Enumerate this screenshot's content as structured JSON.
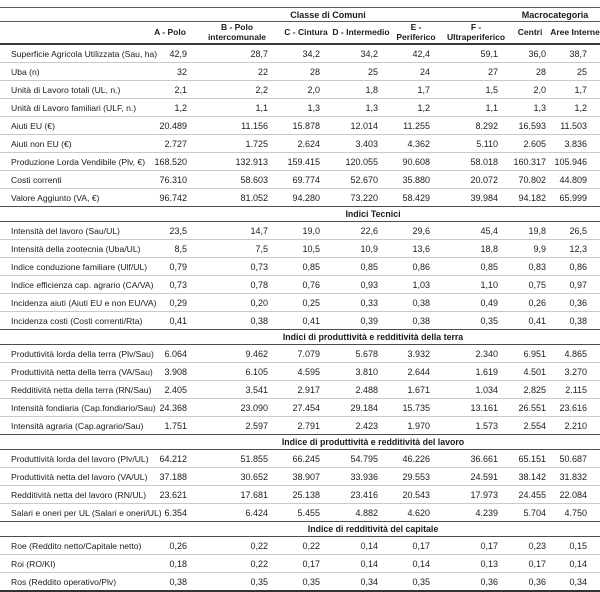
{
  "table": {
    "col_groups": [
      {
        "label": "Classe di Comuni",
        "span": 6
      },
      {
        "label": "Macrocategoria",
        "span": 2
      }
    ],
    "columns": [
      "A - Polo",
      "B - Polo intercomunale",
      "C - Cintura",
      "D - Intermedio",
      "E - Periferico",
      "F - Ultraperiferico",
      "Centri",
      "Aree Interne"
    ],
    "sections": [
      {
        "title": "",
        "rows": [
          {
            "label": "Superficie Agricola Utilizzata (Sau, ha)",
            "values": [
              "42,9",
              "28,7",
              "34,2",
              "34,2",
              "42,4",
              "59,1",
              "36,0",
              "38,7"
            ]
          },
          {
            "label": "Uba (n)",
            "values": [
              "32",
              "22",
              "28",
              "25",
              "24",
              "27",
              "28",
              "25"
            ]
          },
          {
            "label": "Unità di Lavoro totali (UL, n.)",
            "values": [
              "2,1",
              "2,2",
              "2,0",
              "1,8",
              "1,7",
              "1,5",
              "2,0",
              "1,7"
            ]
          },
          {
            "label": "Unità di Lavoro familiari (ULF, n.)",
            "values": [
              "1,2",
              "1,1",
              "1,3",
              "1,3",
              "1,2",
              "1,1",
              "1,3",
              "1,2"
            ]
          },
          {
            "label": "Aiuti EU (€)",
            "values": [
              "20.489",
              "11.156",
              "15.878",
              "12.014",
              "11.255",
              "8.292",
              "16.593",
              "11.503"
            ]
          },
          {
            "label": "Aiuti non EU (€)",
            "values": [
              "2.727",
              "1.725",
              "2.624",
              "3.403",
              "4.362",
              "5.110",
              "2.605",
              "3.836"
            ]
          },
          {
            "label": "Produzione Lorda Vendibile (Plv, €)",
            "values": [
              "168.520",
              "132.913",
              "159.415",
              "120.055",
              "90.608",
              "58.018",
              "160.317",
              "105.946"
            ]
          },
          {
            "label": "Costi correnti",
            "values": [
              "76.310",
              "58.603",
              "69.774",
              "52.670",
              "35.880",
              "20.072",
              "70.802",
              "44.809"
            ]
          },
          {
            "label": "Valore Aggiunto (VA, €)",
            "values": [
              "96.742",
              "81.052",
              "94.280",
              "73.220",
              "58.429",
              "39.984",
              "94.182",
              "65.999"
            ]
          }
        ]
      },
      {
        "title": "Indici Tecnici",
        "rows": [
          {
            "label": "Intensità del lavoro (Sau/UL)",
            "values": [
              "23,5",
              "14,7",
              "19,0",
              "22,6",
              "29,6",
              "45,4",
              "19,8",
              "26,5"
            ]
          },
          {
            "label": "Intensità della zootecnia (Uba/UL)",
            "values": [
              "8,5",
              "7,5",
              "10,5",
              "10,9",
              "13,6",
              "18,8",
              "9,9",
              "12,3"
            ]
          },
          {
            "label": "Indice conduzione familiare (Ulf/UL)",
            "values": [
              "0,79",
              "0,73",
              "0,85",
              "0,85",
              "0,86",
              "0,85",
              "0,83",
              "0,86"
            ]
          },
          {
            "label": "Indice efficienza cap. agrario (CA/VA)",
            "values": [
              "0,73",
              "0,78",
              "0,76",
              "0,93",
              "1,03",
              "1,10",
              "0,75",
              "0,97"
            ]
          },
          {
            "label": "Incidenza aiuti (Aiuti EU e non EU/VA)",
            "values": [
              "0,29",
              "0,20",
              "0,25",
              "0,33",
              "0,38",
              "0,49",
              "0,26",
              "0,36"
            ]
          },
          {
            "label": "Incidenza costi (Costi correnti/Rta)",
            "values": [
              "0,41",
              "0,38",
              "0,41",
              "0,39",
              "0,38",
              "0,35",
              "0,41",
              "0,38"
            ]
          }
        ]
      },
      {
        "title": "Indici di produttività e redditività della terra",
        "rows": [
          {
            "label": "Produttività lorda della terra (Plv/Sau)",
            "values": [
              "6.064",
              "9.462",
              "7.079",
              "5.678",
              "3.932",
              "2.340",
              "6.951",
              "4.865"
            ]
          },
          {
            "label": "Produttività netta della terra (VA/Sau)",
            "values": [
              "3.908",
              "6.105",
              "4.595",
              "3.810",
              "2.644",
              "1.619",
              "4.501",
              "3.270"
            ]
          },
          {
            "label": "Redditività netta della terra (RN/Sau)",
            "values": [
              "2.405",
              "3.541",
              "2.917",
              "2.488",
              "1.671",
              "1.034",
              "2.825",
              "2.115"
            ]
          },
          {
            "label": "Intensità fondiaria (Cap.fondiario/Sau)",
            "values": [
              "24.368",
              "23.090",
              "27.454",
              "29.184",
              "15.735",
              "13.161",
              "26.551",
              "23.616"
            ]
          },
          {
            "label": "Intensità agraria (Cap.agrario/Sau)",
            "values": [
              "1.751",
              "2.597",
              "2.791",
              "2.423",
              "1.970",
              "1.573",
              "2.554",
              "2.210"
            ]
          }
        ]
      },
      {
        "title": "Indice di produttività e redditività del lavoro",
        "rows": [
          {
            "label": "Produttività lorda del lavoro (Plv/UL)",
            "values": [
              "64.212",
              "51.855",
              "66.245",
              "54.795",
              "46.226",
              "36.661",
              "65.151",
              "50.687"
            ]
          },
          {
            "label": "Produttività netta del lavoro (VA/UL)",
            "values": [
              "37.188",
              "30.652",
              "38.907",
              "33.936",
              "29.553",
              "24.591",
              "38.142",
              "31.832"
            ]
          },
          {
            "label": "Redditività netta del lavoro (RN/UL)",
            "values": [
              "23.621",
              "17.681",
              "25.138",
              "23.416",
              "20.543",
              "17.973",
              "24.455",
              "22.084"
            ]
          },
          {
            "label": "Salari e oneri per UL (Salari e oneri/UL)",
            "values": [
              "6.354",
              "6.424",
              "5.455",
              "4.882",
              "4.620",
              "4.239",
              "5.704",
              "4.750"
            ]
          }
        ]
      },
      {
        "title": "Indice di redditività del capitale",
        "rows": [
          {
            "label": "Roe (Reddito netto/Capitale netto)",
            "values": [
              "0,26",
              "0,22",
              "0,22",
              "0,14",
              "0,17",
              "0,17",
              "0,23",
              "0,15"
            ]
          },
          {
            "label": "Roi (RO/KI)",
            "values": [
              "0,18",
              "0,22",
              "0,17",
              "0,14",
              "0,14",
              "0,13",
              "0,17",
              "0,14"
            ]
          },
          {
            "label": "Ros (Reddito operativo/Plv)",
            "values": [
              "0,38",
              "0,35",
              "0,35",
              "0,34",
              "0,35",
              "0,36",
              "0,36",
              "0,34"
            ]
          }
        ]
      }
    ]
  }
}
